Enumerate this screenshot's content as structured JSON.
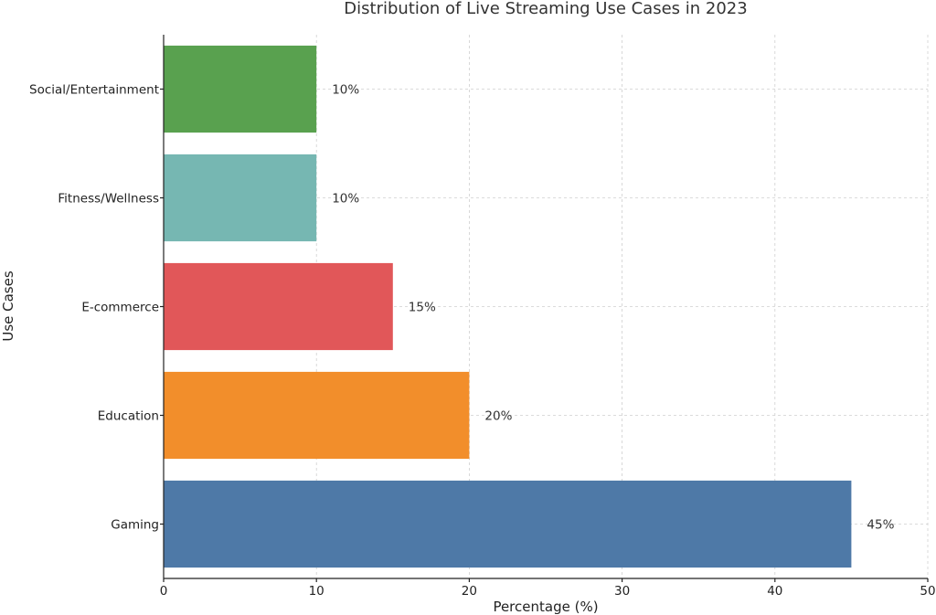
{
  "chart_data": {
    "type": "bar",
    "orientation": "horizontal",
    "title": "Distribution of Live Streaming Use Cases in 2023",
    "xlabel": "Percentage (%)",
    "ylabel": "Use Cases",
    "categories": [
      "Gaming",
      "Education",
      "E-commerce",
      "Fitness/Wellness",
      "Social/Entertainment"
    ],
    "values": [
      45,
      20,
      15,
      10,
      10
    ],
    "value_labels": [
      "45%",
      "20%",
      "15%",
      "10%",
      "10%"
    ],
    "colors": [
      "#4e79a7",
      "#f28e2b",
      "#e15759",
      "#76b7b2",
      "#59a14f"
    ],
    "xlim": [
      0,
      50
    ],
    "xticks": [
      0,
      10,
      20,
      30,
      40,
      50
    ],
    "grid": true
  }
}
